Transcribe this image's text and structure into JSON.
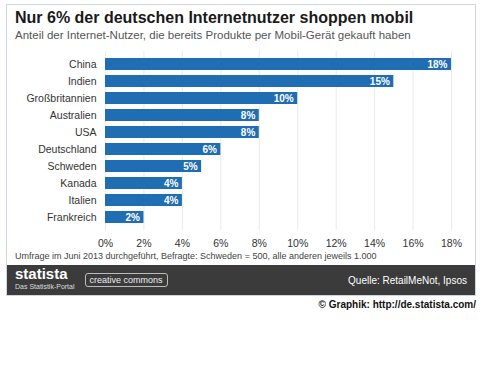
{
  "chart_data": {
    "type": "bar",
    "orientation": "horizontal",
    "title": "Nur 6% der deutschen Internetnutzer shoppen mobil",
    "subtitle": "Anteil der Internet-Nutzer, die bereits Produkte per Mobil-Gerät gekauft haben",
    "categories": [
      "China",
      "Indien",
      "Großbritannien",
      "Australien",
      "USA",
      "Deutschland",
      "Schweden",
      "Kanada",
      "Italien",
      "Frankreich"
    ],
    "values": [
      18,
      15,
      10,
      8,
      8,
      6,
      5,
      4,
      4,
      2
    ],
    "value_labels": [
      "18%",
      "15%",
      "10%",
      "8%",
      "8%",
      "6%",
      "5%",
      "4%",
      "4%",
      "2%"
    ],
    "data_labels": true,
    "color": "#1f6db3",
    "xlim": [
      0,
      18
    ],
    "xticks": [
      {
        "value": 0,
        "label": "0%"
      },
      {
        "value": 2,
        "label": "2%"
      },
      {
        "value": 4,
        "label": "4%"
      },
      {
        "value": 6,
        "label": "6%"
      },
      {
        "value": 8,
        "label": "8%"
      },
      {
        "value": 10,
        "label": "10%"
      },
      {
        "value": 12,
        "label": "12%"
      },
      {
        "value": 14,
        "label": "14%"
      },
      {
        "value": 16,
        "label": "16%"
      },
      {
        "value": 18,
        "label": "18%"
      }
    ],
    "grid": true,
    "note": "Umfrage im Juni 2013 durchgeführt, Befragte: Schweden = 500, alle anderen jeweils 1.000",
    "branding": {
      "logo": "statista",
      "tagline": "Das Statistik-Portal",
      "license": "creative commons"
    },
    "source": "Quelle: RetailMeNot, Ipsos",
    "credit": "© Graphik: http://de.statista.com/"
  }
}
